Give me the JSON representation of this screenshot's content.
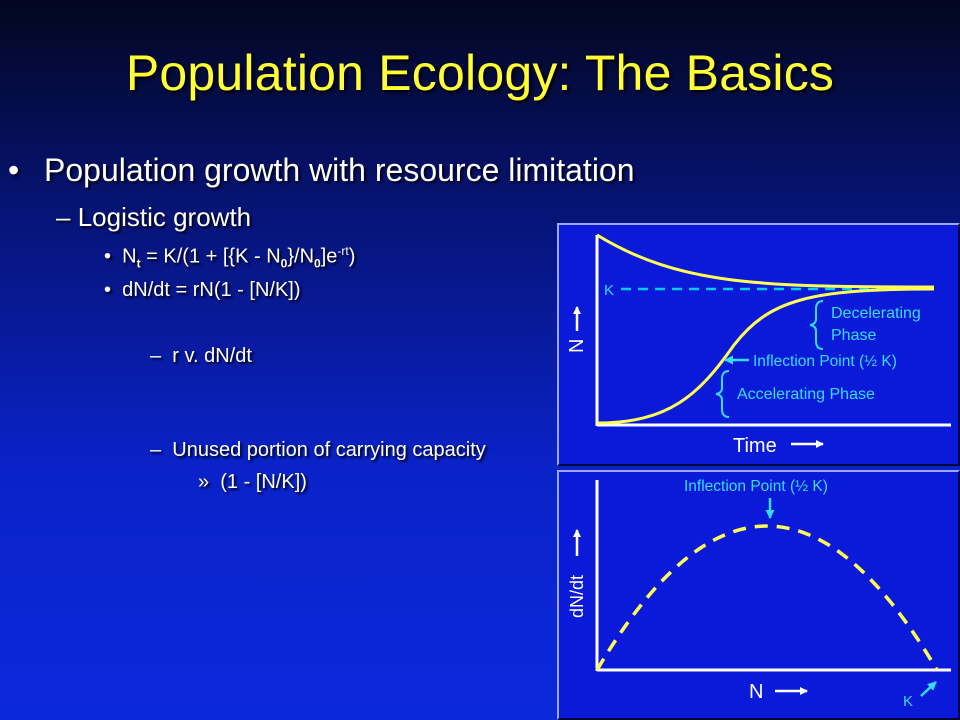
{
  "slide": {
    "title": "Population Ecology: The Basics",
    "bullet1": "Population growth with resource limitation",
    "bullet1_marker": "•",
    "bullet2": "Logistic growth",
    "bullet2_marker": "–",
    "eq_marker": "•",
    "eq1": {
      "a": "N",
      "b": "t",
      "c": " = K/(1 + [{K - N",
      "d": "0",
      "e": "}/N",
      "f": "0",
      "g": "]e",
      "h": "-rt",
      "i": ")"
    },
    "eq2": "dN/dt = rN(1 - [N/K])",
    "sub_marker": "–",
    "sub1": "r v. dN/dt",
    "sub2": "Unused portion of carrying capacity",
    "sub3_marker": "»",
    "sub3": "(1 - [N/K])"
  },
  "graph_top": {
    "y_axis_label": "N",
    "x_axis_label": "Time",
    "k_label": "K",
    "decel_label_line1": "Decelerating",
    "decel_label_line2": "Phase",
    "inflection_label": "Inflection Point (½ K)",
    "accel_label": "Accelerating Phase",
    "curve_color": "#ffff55",
    "k_line_color": "#00ccff",
    "annotation_color": "#33ddff"
  },
  "graph_bottom": {
    "y_axis_label": "dN/dt",
    "x_axis_label": "N",
    "k_label": "K",
    "inflection_label": "Inflection Point (½ K)",
    "curve_color": "#ffff55"
  }
}
